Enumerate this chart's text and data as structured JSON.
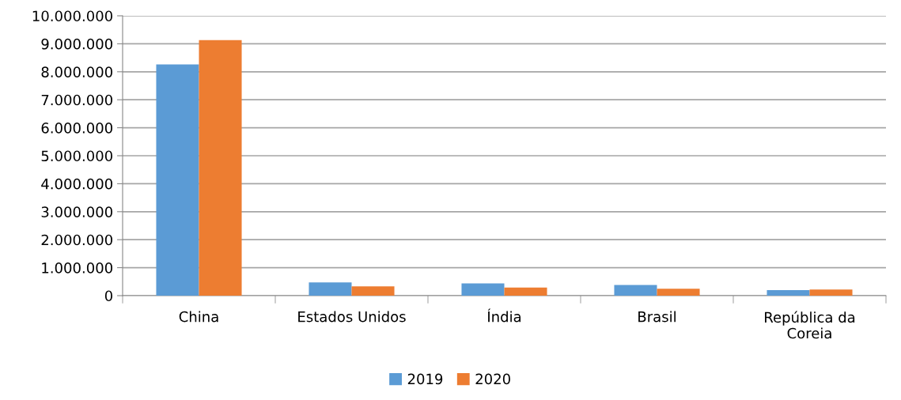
{
  "chart_data": {
    "type": "bar",
    "categories": [
      "China",
      "Estados Unidos",
      "Índia",
      "Brasil",
      "República da\nCoreia"
    ],
    "series": [
      {
        "name": "2019",
        "color": "#5b9bd5",
        "values": [
          8260000,
          470000,
          440000,
          380000,
          200000
        ]
      },
      {
        "name": "2020",
        "color": "#ed7d31",
        "values": [
          9130000,
          330000,
          290000,
          250000,
          220000
        ]
      }
    ],
    "ylim": [
      0,
      10000000
    ],
    "yticks": [
      {
        "value": 0,
        "label": "0"
      },
      {
        "value": 1000000,
        "label": "1.000.000"
      },
      {
        "value": 2000000,
        "label": "2.000.000"
      },
      {
        "value": 3000000,
        "label": "3.000.000"
      },
      {
        "value": 4000000,
        "label": "4.000.000"
      },
      {
        "value": 5000000,
        "label": "5.000.000"
      },
      {
        "value": 6000000,
        "label": "6.000.000"
      },
      {
        "value": 7000000,
        "label": "7.000.000"
      },
      {
        "value": 8000000,
        "label": "8.000.000"
      },
      {
        "value": 9000000,
        "label": "9.000.000"
      },
      {
        "value": 10000000,
        "label": "10.000.000"
      }
    ],
    "grid": "y",
    "legend": "bottom"
  }
}
